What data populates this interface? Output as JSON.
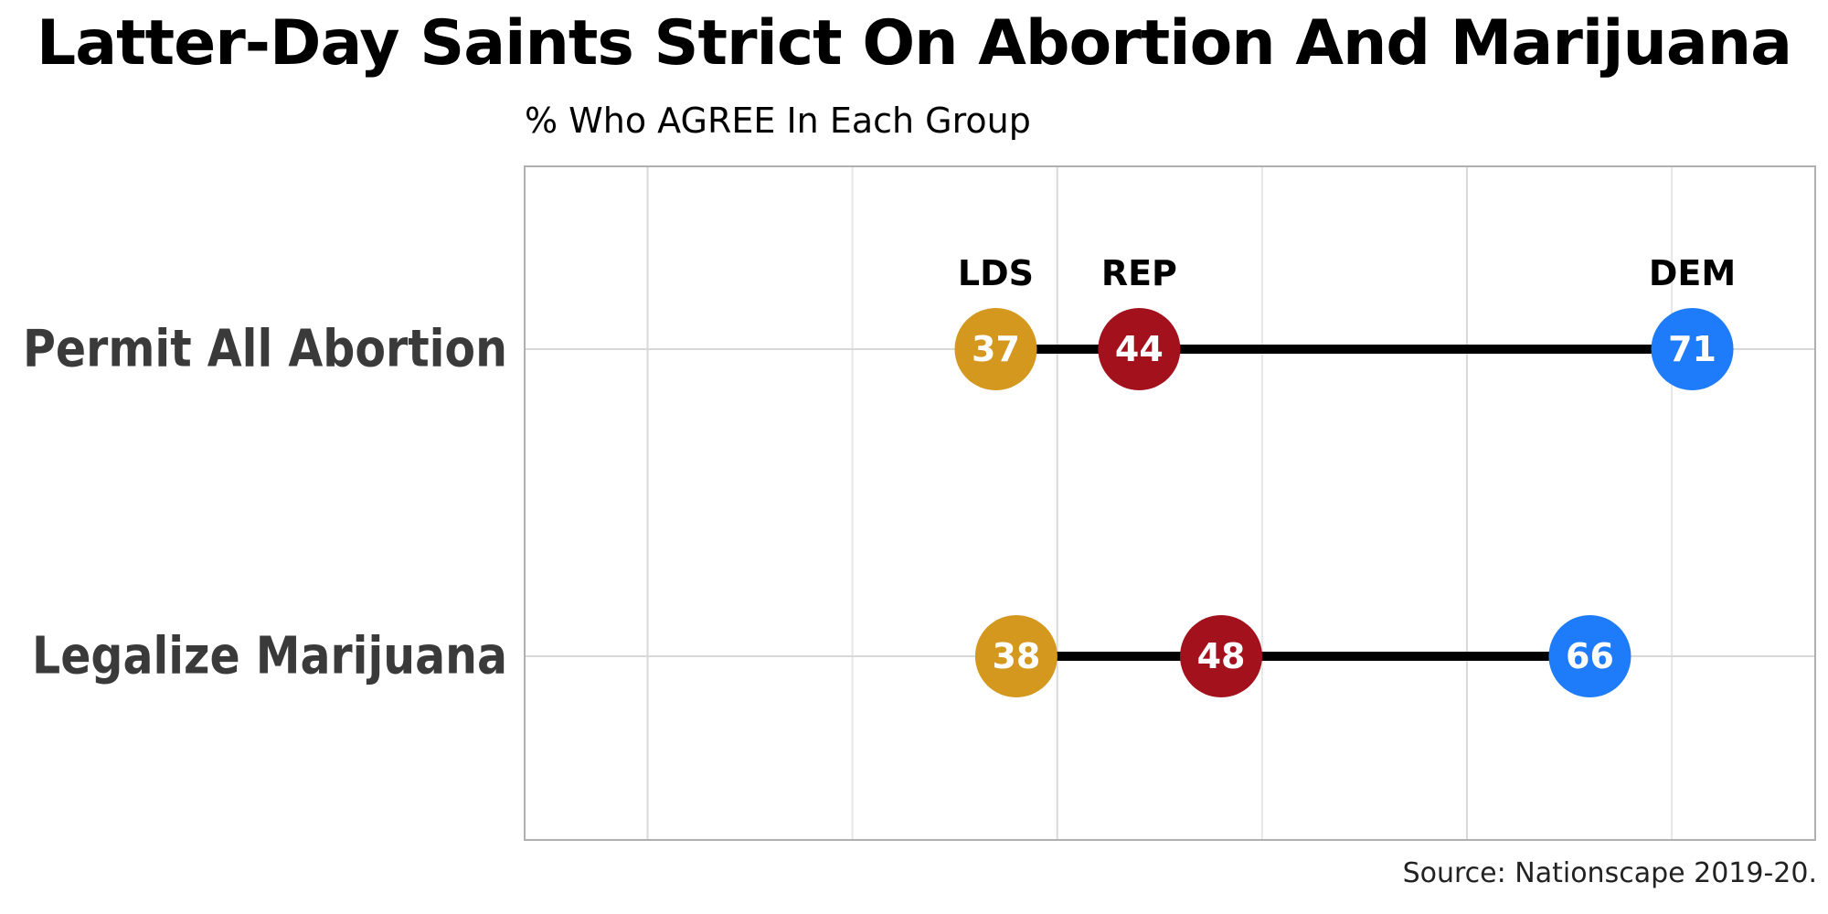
{
  "chart_data": {
    "type": "dot",
    "title": "Latter-Day Saints Strict On Abortion And Marijuana",
    "subtitle": "% Who AGREE In Each Group",
    "source": "Source: Nationscape 2019-20.",
    "categories": [
      "Permit All Abortion",
      "Legalize Marijuana"
    ],
    "series": [
      {
        "name": "LDS",
        "values": [
          37,
          38
        ],
        "color": "#D4981F"
      },
      {
        "name": "REP",
        "values": [
          44,
          48
        ],
        "color": "#A3111C"
      },
      {
        "name": "DEM",
        "values": [
          71,
          66
        ],
        "color": "#1E7BFA"
      }
    ],
    "xlim": [
      14,
      77
    ],
    "grid": true,
    "tick_labels_shown": false,
    "connector_color": "#000000"
  }
}
